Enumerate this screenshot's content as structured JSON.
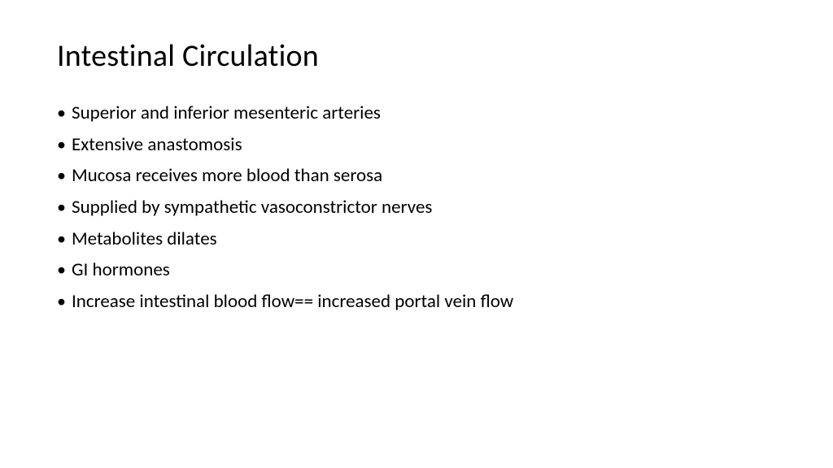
{
  "slide": {
    "title": "Intestinal Circulation",
    "title_fontsize": 38,
    "title_color": "#000000",
    "body_fontsize": 23,
    "body_color": "#000000",
    "background_color": "#ffffff",
    "font_family": "Calibri",
    "bullets": [
      "Superior and inferior mesenteric arteries",
      "Extensive anastomosis",
      "Mucosa receives more blood than serosa",
      "Supplied by sympathetic vasoconstrictor nerves",
      "Metabolites dilates",
      "GI hormones",
      "Increase intestinal blood flow== increased portal vein flow"
    ]
  }
}
